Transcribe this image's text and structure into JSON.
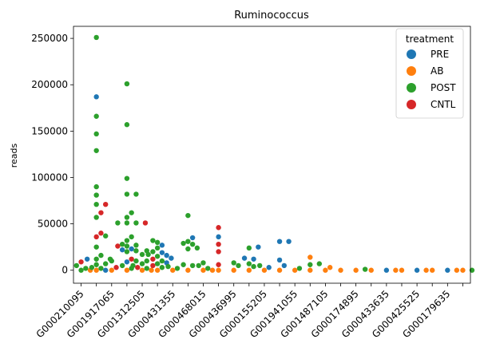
{
  "chart_data": {
    "type": "scatter",
    "subtype": "swarm",
    "title": "Ruminococcus",
    "xlabel": "",
    "ylabel": "reads",
    "ylim": [
      -14000,
      263000
    ],
    "yticks": [
      0,
      50000,
      100000,
      150000,
      200000,
      250000
    ],
    "xtick_labels": [
      "G000210095",
      "G001917065",
      "G001312505",
      "G000431355",
      "G000468015",
      "G000436995",
      "G000155205",
      "G001941055",
      "G001487105",
      "G000174895",
      "G000433635",
      "G000425525",
      "G000179635"
    ],
    "category_count": 26,
    "legend": {
      "title": "treatment",
      "position": "top-right",
      "entries": [
        {
          "name": "PRE",
          "color": "#1f77b4"
        },
        {
          "name": "AB",
          "color": "#ff7f0e"
        },
        {
          "name": "POST",
          "color": "#2ca02c"
        },
        {
          "name": "CNTL",
          "color": "#d62728"
        }
      ]
    },
    "points": [
      {
        "i": 0,
        "t": "POST",
        "y": 0
      },
      {
        "i": 0,
        "t": "POST",
        "y": 2000
      },
      {
        "i": 0,
        "t": "POST",
        "y": 5000
      },
      {
        "i": 0,
        "t": "CNTL",
        "y": 9000
      },
      {
        "i": 0,
        "t": "AB",
        "y": 0
      },
      {
        "i": 1,
        "t": "POST",
        "y": 251000
      },
      {
        "i": 1,
        "t": "PRE",
        "y": 187000
      },
      {
        "i": 1,
        "t": "POST",
        "y": 166000
      },
      {
        "i": 1,
        "t": "POST",
        "y": 147000
      },
      {
        "i": 1,
        "t": "POST",
        "y": 129000
      },
      {
        "i": 1,
        "t": "POST",
        "y": 90000
      },
      {
        "i": 1,
        "t": "POST",
        "y": 81000
      },
      {
        "i": 1,
        "t": "POST",
        "y": 71000
      },
      {
        "i": 1,
        "t": "CNTL",
        "y": 71000
      },
      {
        "i": 1,
        "t": "CNTL",
        "y": 62000
      },
      {
        "i": 1,
        "t": "POST",
        "y": 57000
      },
      {
        "i": 1,
        "t": "CNTL",
        "y": 40000
      },
      {
        "i": 1,
        "t": "POST",
        "y": 37000
      },
      {
        "i": 1,
        "t": "CNTL",
        "y": 36000
      },
      {
        "i": 1,
        "t": "POST",
        "y": 25000
      },
      {
        "i": 1,
        "t": "POST",
        "y": 16000
      },
      {
        "i": 1,
        "t": "POST",
        "y": 12000
      },
      {
        "i": 1,
        "t": "PRE",
        "y": 12000
      },
      {
        "i": 1,
        "t": "POST",
        "y": 12000
      },
      {
        "i": 1,
        "t": "POST",
        "y": 7000
      },
      {
        "i": 1,
        "t": "POST",
        "y": 6000
      },
      {
        "i": 1,
        "t": "POST",
        "y": 3000
      },
      {
        "i": 1,
        "t": "POST",
        "y": 2000
      },
      {
        "i": 1,
        "t": "AB",
        "y": 0
      },
      {
        "i": 1,
        "t": "PRE",
        "y": 0
      },
      {
        "i": 2,
        "t": "POST",
        "y": 10000
      },
      {
        "i": 2,
        "t": "CNTL",
        "y": 3000
      },
      {
        "i": 2,
        "t": "AB",
        "y": 0
      },
      {
        "i": 3,
        "t": "POST",
        "y": 201000
      },
      {
        "i": 3,
        "t": "POST",
        "y": 157000
      },
      {
        "i": 3,
        "t": "POST",
        "y": 99000
      },
      {
        "i": 3,
        "t": "POST",
        "y": 82000
      },
      {
        "i": 3,
        "t": "POST",
        "y": 82000
      },
      {
        "i": 3,
        "t": "POST",
        "y": 62000
      },
      {
        "i": 3,
        "t": "POST",
        "y": 57000
      },
      {
        "i": 3,
        "t": "POST",
        "y": 51000
      },
      {
        "i": 3,
        "t": "POST",
        "y": 51000
      },
      {
        "i": 3,
        "t": "POST",
        "y": 51000
      },
      {
        "i": 3,
        "t": "CNTL",
        "y": 51000
      },
      {
        "i": 3,
        "t": "POST",
        "y": 36000
      },
      {
        "i": 3,
        "t": "POST",
        "y": 32000
      },
      {
        "i": 3,
        "t": "POST",
        "y": 28000
      },
      {
        "i": 3,
        "t": "POST",
        "y": 27000
      },
      {
        "i": 3,
        "t": "POST",
        "y": 26000
      },
      {
        "i": 3,
        "t": "CNTL",
        "y": 26000
      },
      {
        "i": 3,
        "t": "PRE",
        "y": 23000
      },
      {
        "i": 3,
        "t": "PRE",
        "y": 22000
      },
      {
        "i": 3,
        "t": "POST",
        "y": 21000
      },
      {
        "i": 3,
        "t": "POST",
        "y": 20000
      },
      {
        "i": 3,
        "t": "CNTL",
        "y": 12000
      },
      {
        "i": 3,
        "t": "POST",
        "y": 10000
      },
      {
        "i": 3,
        "t": "PRE",
        "y": 9000
      },
      {
        "i": 3,
        "t": "POST",
        "y": 5000
      },
      {
        "i": 3,
        "t": "POST",
        "y": 2000
      },
      {
        "i": 3,
        "t": "AB",
        "y": 0
      },
      {
        "i": 4,
        "t": "POST",
        "y": 21000
      },
      {
        "i": 4,
        "t": "POST",
        "y": 17000
      },
      {
        "i": 4,
        "t": "POST",
        "y": 10000
      },
      {
        "i": 4,
        "t": "POST",
        "y": 7000
      },
      {
        "i": 4,
        "t": "POST",
        "y": 5000
      },
      {
        "i": 4,
        "t": "CNTL",
        "y": 3000
      },
      {
        "i": 4,
        "t": "POST",
        "y": 2000
      },
      {
        "i": 4,
        "t": "AB",
        "y": 0
      },
      {
        "i": 4,
        "t": "AB",
        "y": 0
      },
      {
        "i": 5,
        "t": "POST",
        "y": 32000
      },
      {
        "i": 5,
        "t": "POST",
        "y": 30000
      },
      {
        "i": 5,
        "t": "PRE",
        "y": 27000
      },
      {
        "i": 5,
        "t": "POST",
        "y": 24000
      },
      {
        "i": 5,
        "t": "POST",
        "y": 20000
      },
      {
        "i": 5,
        "t": "PRE",
        "y": 19000
      },
      {
        "i": 5,
        "t": "POST",
        "y": 17000
      },
      {
        "i": 5,
        "t": "PRE",
        "y": 16000
      },
      {
        "i": 5,
        "t": "POST",
        "y": 15000
      },
      {
        "i": 5,
        "t": "PRE",
        "y": 13000
      },
      {
        "i": 5,
        "t": "CNTL",
        "y": 12000
      },
      {
        "i": 5,
        "t": "POST",
        "y": 10000
      },
      {
        "i": 5,
        "t": "PRE",
        "y": 8000
      },
      {
        "i": 5,
        "t": "POST",
        "y": 7000
      },
      {
        "i": 5,
        "t": "CNTL",
        "y": 5000
      },
      {
        "i": 5,
        "t": "POST",
        "y": 3000
      },
      {
        "i": 5,
        "t": "AB",
        "y": 0
      },
      {
        "i": 6,
        "t": "POST",
        "y": 4000
      },
      {
        "i": 6,
        "t": "POST",
        "y": 2000
      },
      {
        "i": 6,
        "t": "AB",
        "y": 0
      },
      {
        "i": 7,
        "t": "POST",
        "y": 59000
      },
      {
        "i": 7,
        "t": "PRE",
        "y": 35000
      },
      {
        "i": 7,
        "t": "POST",
        "y": 31000
      },
      {
        "i": 7,
        "t": "POST",
        "y": 29000
      },
      {
        "i": 7,
        "t": "POST",
        "y": 28000
      },
      {
        "i": 7,
        "t": "POST",
        "y": 24000
      },
      {
        "i": 7,
        "t": "POST",
        "y": 23000
      },
      {
        "i": 7,
        "t": "POST",
        "y": 6000
      },
      {
        "i": 7,
        "t": "POST",
        "y": 5000
      },
      {
        "i": 7,
        "t": "AB",
        "y": 0
      },
      {
        "i": 8,
        "t": "POST",
        "y": 8000
      },
      {
        "i": 8,
        "t": "POST",
        "y": 5000
      },
      {
        "i": 8,
        "t": "POST",
        "y": 2000
      },
      {
        "i": 8,
        "t": "AB",
        "y": 0
      },
      {
        "i": 8,
        "t": "AB",
        "y": 0
      },
      {
        "i": 9,
        "t": "CNTL",
        "y": 46000
      },
      {
        "i": 9,
        "t": "PRE",
        "y": 36000
      },
      {
        "i": 9,
        "t": "CNTL",
        "y": 28000
      },
      {
        "i": 9,
        "t": "CNTL",
        "y": 20000
      },
      {
        "i": 9,
        "t": "CNTL",
        "y": 6000
      },
      {
        "i": 9,
        "t": "AB",
        "y": 0
      },
      {
        "i": 10,
        "t": "POST",
        "y": 8000
      },
      {
        "i": 10,
        "t": "POST",
        "y": 5000
      },
      {
        "i": 10,
        "t": "AB",
        "y": 0
      },
      {
        "i": 11,
        "t": "PRE",
        "y": 25000
      },
      {
        "i": 11,
        "t": "POST",
        "y": 24000
      },
      {
        "i": 11,
        "t": "PRE",
        "y": 13000
      },
      {
        "i": 11,
        "t": "PRE",
        "y": 12000
      },
      {
        "i": 11,
        "t": "POST",
        "y": 7000
      },
      {
        "i": 11,
        "t": "POST",
        "y": 4000
      },
      {
        "i": 11,
        "t": "AB",
        "y": 0
      },
      {
        "i": 12,
        "t": "POST",
        "y": 5000
      },
      {
        "i": 12,
        "t": "PRE",
        "y": 3000
      },
      {
        "i": 12,
        "t": "AB",
        "y": 0
      },
      {
        "i": 13,
        "t": "PRE",
        "y": 31000
      },
      {
        "i": 13,
        "t": "PRE",
        "y": 31000
      },
      {
        "i": 13,
        "t": "PRE",
        "y": 11000
      },
      {
        "i": 13,
        "t": "PRE",
        "y": 5000
      },
      {
        "i": 13,
        "t": "AB",
        "y": 0
      },
      {
        "i": 14,
        "t": "POST",
        "y": 2000
      },
      {
        "i": 14,
        "t": "AB",
        "y": 0
      },
      {
        "i": 15,
        "t": "POST",
        "y": 7000
      },
      {
        "i": 15,
        "t": "POST",
        "y": 6000
      },
      {
        "i": 15,
        "t": "AB",
        "y": 14000
      },
      {
        "i": 15,
        "t": "AB",
        "y": 0
      },
      {
        "i": 16,
        "t": "AB",
        "y": 3000
      },
      {
        "i": 16,
        "t": "AB",
        "y": 0
      },
      {
        "i": 17,
        "t": "AB",
        "y": 0
      },
      {
        "i": 18,
        "t": "POST",
        "y": 1000
      },
      {
        "i": 18,
        "t": "AB",
        "y": 0
      },
      {
        "i": 19,
        "t": "AB",
        "y": 0
      },
      {
        "i": 20,
        "t": "PRE",
        "y": 0
      },
      {
        "i": 20,
        "t": "AB",
        "y": 0
      },
      {
        "i": 21,
        "t": "AB",
        "y": 0
      },
      {
        "i": 22,
        "t": "PRE",
        "y": 0
      },
      {
        "i": 22,
        "t": "AB",
        "y": 0
      },
      {
        "i": 23,
        "t": "AB",
        "y": 0
      },
      {
        "i": 24,
        "t": "PRE",
        "y": 0
      },
      {
        "i": 24,
        "t": "AB",
        "y": 0
      },
      {
        "i": 25,
        "t": "AB",
        "y": 0
      },
      {
        "i": 25,
        "t": "POST",
        "y": 0
      }
    ]
  }
}
